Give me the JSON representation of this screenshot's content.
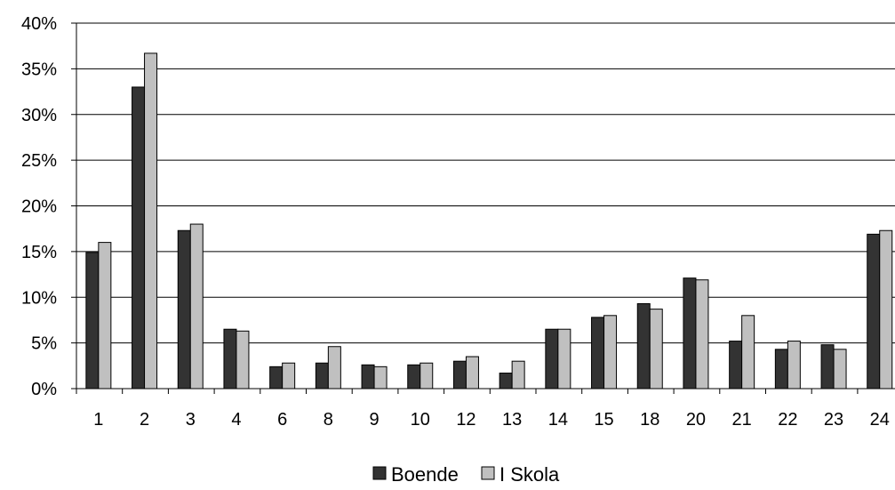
{
  "chart_data": {
    "type": "bar",
    "title": "",
    "xlabel": "",
    "ylabel": "",
    "categories": [
      "1",
      "2",
      "3",
      "4",
      "6",
      "8",
      "9",
      "10",
      "12",
      "13",
      "14",
      "15",
      "18",
      "20",
      "21",
      "22",
      "23",
      "24"
    ],
    "series": [
      {
        "name": "Boende",
        "color": "#333333",
        "values": [
          14.9,
          33.0,
          17.3,
          6.5,
          2.4,
          2.8,
          2.6,
          2.6,
          3.0,
          1.7,
          6.5,
          7.8,
          9.3,
          12.1,
          5.2,
          4.3,
          4.8,
          16.9
        ]
      },
      {
        "name": "I Skola",
        "color": "#c0c0c0",
        "values": [
          16.0,
          36.7,
          18.0,
          6.3,
          2.8,
          4.6,
          2.4,
          2.8,
          3.5,
          3.0,
          6.5,
          8.0,
          8.7,
          11.9,
          8.0,
          5.2,
          4.3,
          17.3
        ]
      }
    ],
    "ylim": [
      0,
      40
    ],
    "yticks": [
      0,
      5,
      10,
      15,
      20,
      25,
      30,
      35,
      40
    ],
    "ytick_format": "%",
    "grid": true,
    "legend_position": "bottom"
  }
}
